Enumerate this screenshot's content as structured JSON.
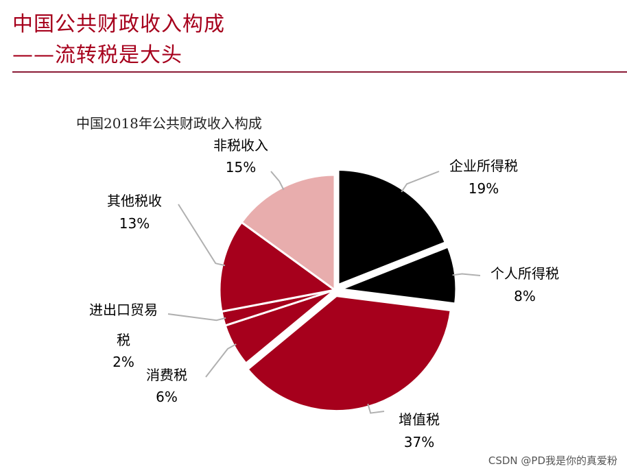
{
  "header": {
    "title_line1": "中国公共财政收入构成",
    "title_line2": "——流转税是大头"
  },
  "chart_data": {
    "type": "pie",
    "title": "中国2018年公共财政收入构成",
    "slices": [
      {
        "name": "企业所得税",
        "value": 19,
        "label": "19%",
        "color": "#000000",
        "exploded": true
      },
      {
        "name": "个人所得税",
        "value": 8,
        "label": "8%",
        "color": "#000000",
        "exploded": true
      },
      {
        "name": "增值税",
        "value": 37,
        "label": "37%",
        "color": "#a6001c",
        "exploded": true
      },
      {
        "name": "消费税",
        "value": 6,
        "label": "6%",
        "color": "#a6001c",
        "exploded": false
      },
      {
        "name": "进出口贸易税",
        "name_line1": "进出口贸易",
        "name_line2": "税",
        "value": 2,
        "label": "2%",
        "color": "#a6001c",
        "exploded": false
      },
      {
        "name": "其他税收",
        "value": 13,
        "label": "13%",
        "color": "#a6001c",
        "exploded": false
      },
      {
        "name": "非税收入",
        "value": 15,
        "label": "15%",
        "color": "#e8adad",
        "exploded": false
      }
    ],
    "legend": "none"
  },
  "watermark": "CSDN @PD我是你的真爱粉"
}
